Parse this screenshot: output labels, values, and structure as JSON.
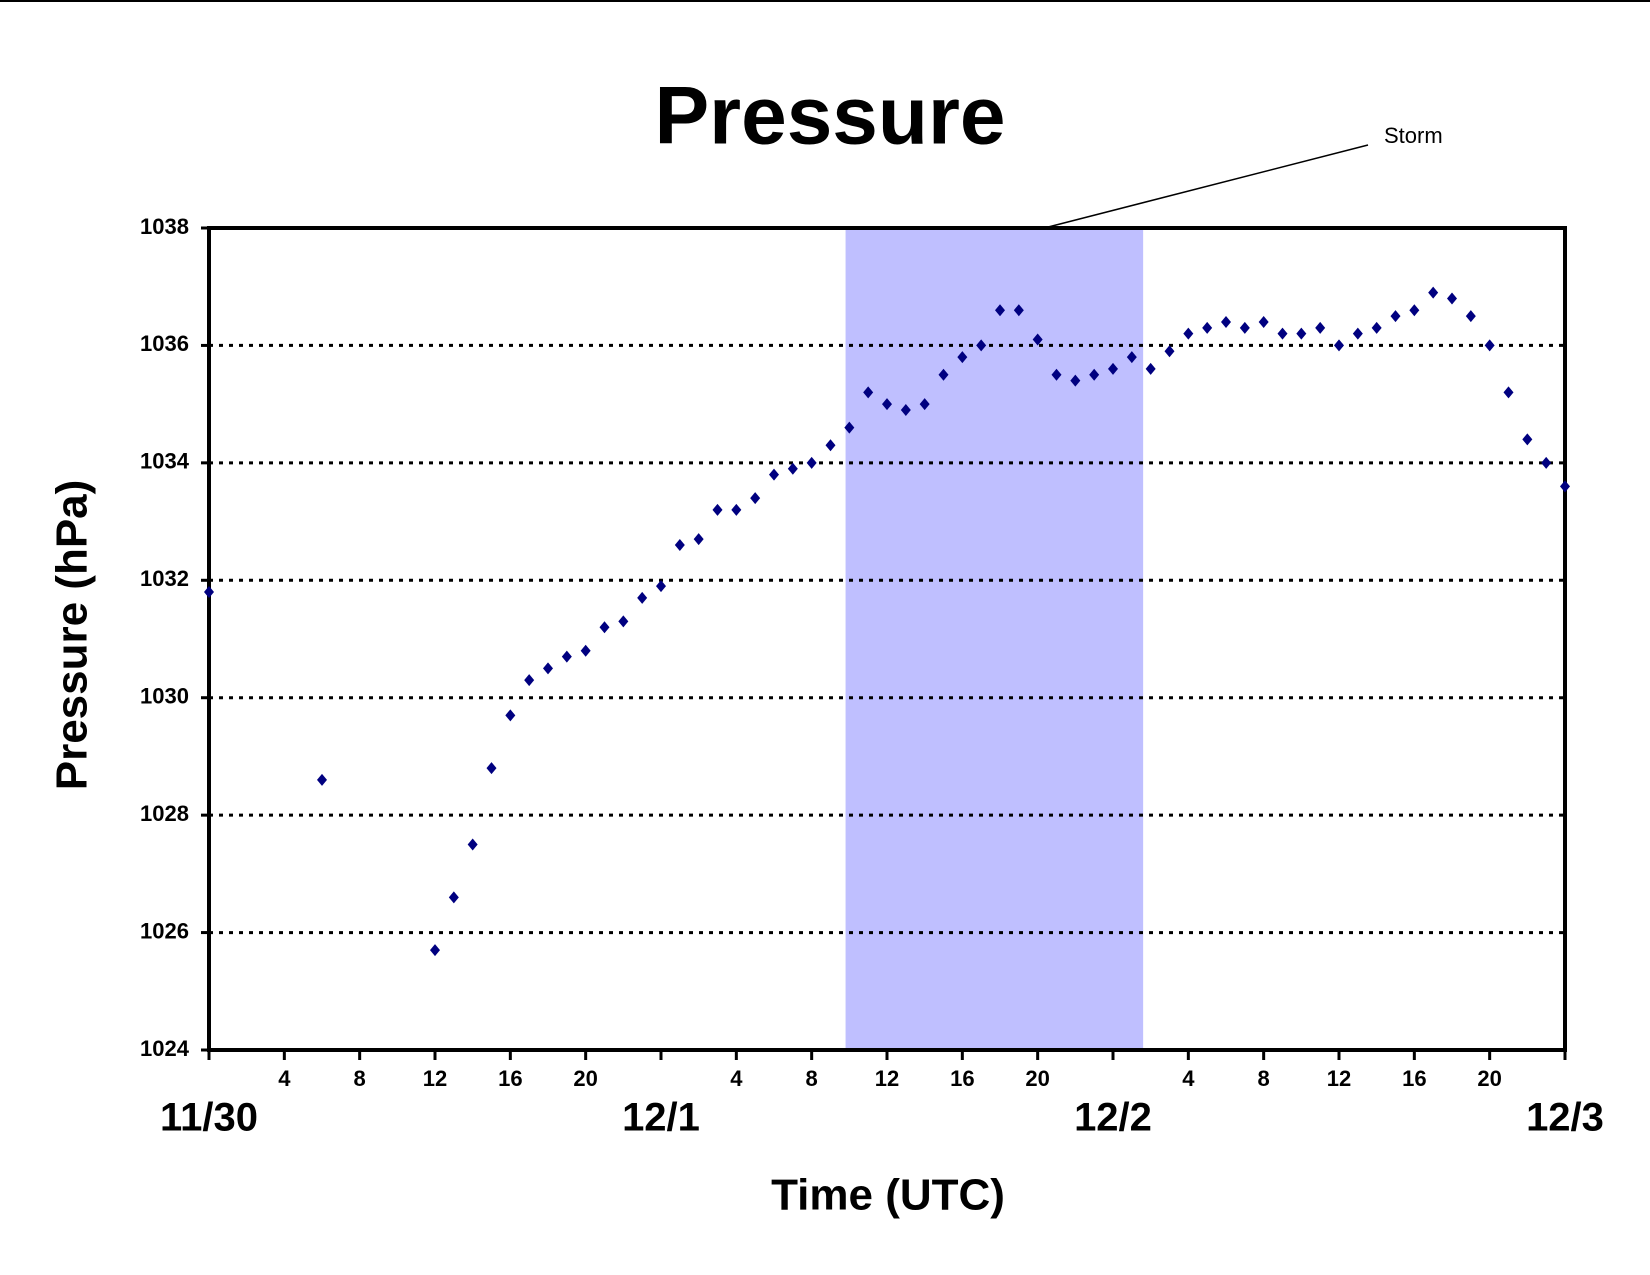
{
  "chart_data": {
    "type": "scatter",
    "title": "Pressure",
    "x_label": "Time (UTC)",
    "y_label": "Pressure (hPa)",
    "annotation": "Storm",
    "storm_span": [
      33.8,
      49.6
    ],
    "storm_color": "#bfbfff",
    "color": "#000080",
    "grid": true,
    "xlim": [
      0,
      72
    ],
    "ylim": [
      1024,
      1038
    ],
    "yticks": [
      1024,
      1026,
      1028,
      1030,
      1032,
      1034,
      1036,
      1038
    ],
    "xticks": [
      4,
      8,
      12,
      16,
      20,
      {
        "value": 28,
        "label": "4"
      },
      {
        "value": 32,
        "label": "8"
      },
      {
        "value": 36,
        "label": "12"
      },
      {
        "value": 40,
        "label": "16"
      },
      {
        "value": 44,
        "label": "20"
      },
      {
        "value": 52,
        "label": "4"
      },
      {
        "value": 56,
        "label": "8"
      },
      {
        "value": 60,
        "label": "12"
      },
      {
        "value": 64,
        "label": "16"
      },
      {
        "value": 68,
        "label": "20"
      }
    ],
    "date_ticks": [
      {
        "value": 0,
        "label": "11/30"
      },
      {
        "value": 24,
        "label": "12/1"
      },
      {
        "value": 48,
        "label": "12/2"
      },
      {
        "value": 72,
        "label": "12/3"
      }
    ],
    "x": [
      0,
      6,
      12,
      13,
      14,
      15,
      16,
      17,
      18,
      19,
      20,
      21,
      22,
      23,
      24,
      25,
      26,
      27,
      28,
      29,
      30,
      31,
      32,
      33,
      34,
      35,
      36,
      37,
      38,
      39,
      40,
      41,
      42,
      43,
      44,
      45,
      46,
      47,
      48,
      49,
      50,
      51,
      52,
      53,
      54,
      55,
      56,
      57,
      58,
      59,
      60,
      61,
      62,
      63,
      64,
      65,
      66,
      67,
      68,
      69,
      70,
      71,
      72
    ],
    "values": [
      1031.8,
      1028.6,
      1025.7,
      1026.6,
      1027.5,
      1028.8,
      1029.7,
      1030.3,
      1030.5,
      1030.7,
      1030.8,
      1031.2,
      1031.3,
      1031.7,
      1031.9,
      1032.6,
      1032.7,
      1033.2,
      1033.2,
      1033.4,
      1033.8,
      1033.9,
      1034.0,
      1034.3,
      1034.6,
      1035.2,
      1035.0,
      1034.9,
      1035.0,
      1035.5,
      1035.8,
      1036.0,
      1036.6,
      1036.6,
      1036.1,
      1035.5,
      1035.4,
      1035.5,
      1035.6,
      1035.8,
      1035.6,
      1035.9,
      1036.2,
      1036.3,
      1036.4,
      1036.3,
      1036.4,
      1036.2,
      1036.2,
      1036.3,
      1036.0,
      1036.2,
      1036.3,
      1036.5,
      1036.6,
      1036.9,
      1036.8,
      1036.5,
      1036.0,
      1035.2,
      1034.4,
      1034.0,
      1033.6
    ]
  }
}
